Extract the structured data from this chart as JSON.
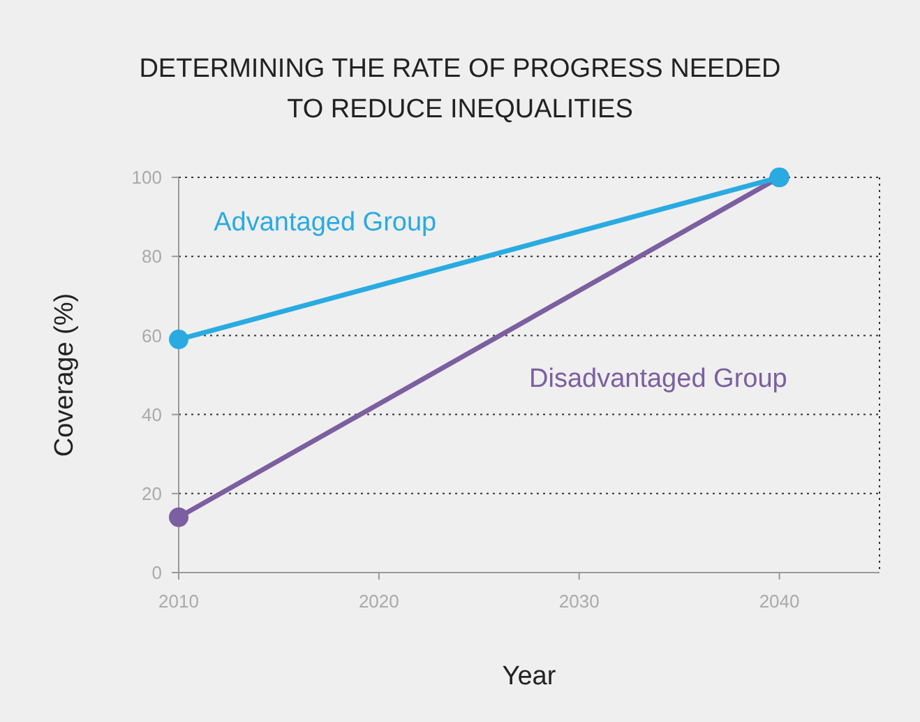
{
  "chart_data": {
    "type": "line",
    "title": "DETERMINING THE RATE OF PROGRESS NEEDED TO REDUCE INEQUALITIES",
    "xlabel": "Year",
    "ylabel": "Coverage (%)",
    "x": [
      2010,
      2040
    ],
    "series": [
      {
        "name": "Advantaged Group",
        "color": "#29abe2",
        "values": [
          59,
          100
        ]
      },
      {
        "name": "Disadvantaged Group",
        "color": "#7b5fa0",
        "values": [
          14,
          100
        ]
      }
    ],
    "xlim": [
      2010,
      2045
    ],
    "xticks": [
      2010,
      2020,
      2030,
      2040
    ],
    "ylim": [
      0,
      100
    ],
    "yticks": [
      0,
      20,
      40,
      60,
      80,
      100
    ],
    "grid": "y",
    "marker": "circle",
    "line_style": "solid"
  }
}
